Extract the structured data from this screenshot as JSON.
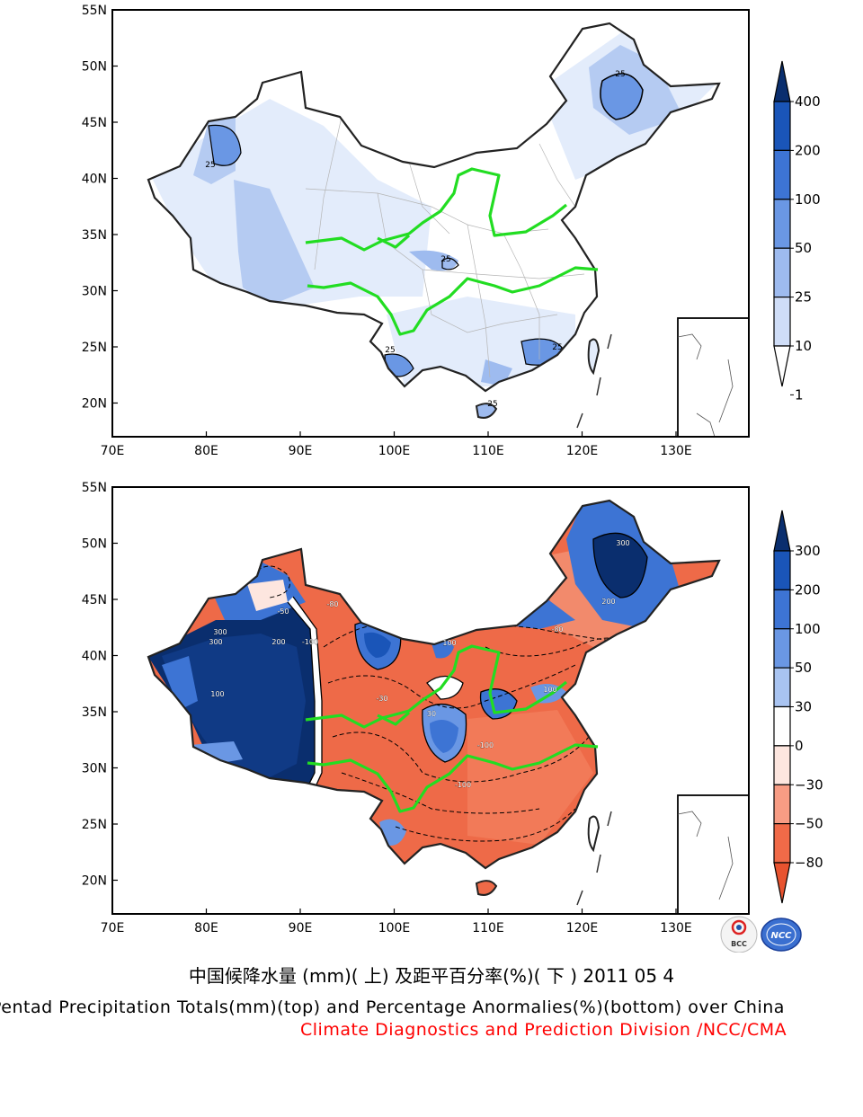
{
  "top_map": {
    "lat_labels": [
      "55N",
      "50N",
      "45N",
      "40N",
      "35N",
      "30N",
      "25N",
      "20N"
    ],
    "lon_labels": [
      "70E",
      "80E",
      "90E",
      "100E",
      "110E",
      "120E",
      "130E"
    ],
    "contour_labels": [
      "25",
      "25",
      "25",
      "25",
      "25",
      "25"
    ],
    "colorbar": {
      "labels": [
        "400",
        "200",
        "100",
        "50",
        "25",
        "10",
        "1"
      ],
      "colors": [
        "#0a2e6e",
        "#1a55b8",
        "#3d74d4",
        "#6a97e4",
        "#9ebbef",
        "#cfddf7",
        "#ffffff"
      ]
    }
  },
  "bottom_map": {
    "lat_labels": [
      "55N",
      "50N",
      "45N",
      "40N",
      "35N",
      "30N",
      "25N",
      "20N"
    ],
    "lon_labels": [
      "70E",
      "80E",
      "90E",
      "100E",
      "110E",
      "120E",
      "130E"
    ],
    "contour_labels": [
      "300",
      "300",
      "200",
      "100",
      "-100",
      "-80",
      "-50",
      "-30",
      "30",
      "100",
      "200",
      "300",
      "-100",
      "-80",
      "100",
      "-100"
    ],
    "colorbar": {
      "labels": [
        "300",
        "200",
        "100",
        "50",
        "30",
        "0",
        "−30",
        "−50",
        "−80"
      ],
      "colors": [
        "#0a2e6e",
        "#1a55b8",
        "#3d74d4",
        "#6a97e4",
        "#a9c4f1",
        "#ffffff",
        "#fde6df",
        "#f79c84",
        "#f06a48",
        "#e8532f"
      ]
    }
  },
  "logos": {
    "bcc": "BCC",
    "ncc": "NCC"
  },
  "caption_cn": "中国候降水量 (mm)( 上) 及距平百分率(%)( 下 ) 2011 05 4",
  "caption_en": "Pentad Precipitation Totals(mm)(top) and Percentage Anormalies(%)(bottom) over China",
  "caption_division": "Climate Diagnostics and Prediction Division /NCC/CMA"
}
